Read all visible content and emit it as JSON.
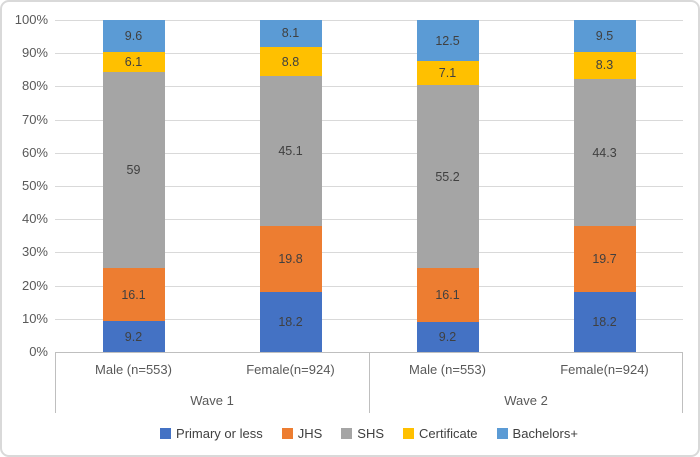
{
  "chart_data": {
    "type": "bar",
    "stacked": true,
    "percent_stacked": true,
    "title": "",
    "groups": [
      {
        "label": "Wave 1",
        "categories": [
          "Male (n=553)",
          "Female(n=924)"
        ]
      },
      {
        "label": "Wave 2",
        "categories": [
          "Male (n=553)",
          "Female(n=924)"
        ]
      }
    ],
    "series": [
      {
        "name": "Primary or less",
        "color": "#4472C4",
        "values": [
          9.2,
          18.2,
          9.2,
          18.2
        ]
      },
      {
        "name": "JHS",
        "color": "#ED7D31",
        "values": [
          16.1,
          19.8,
          16.1,
          19.7
        ]
      },
      {
        "name": "SHS",
        "color": "#A5A5A5",
        "values": [
          59,
          45.1,
          55.2,
          44.3
        ]
      },
      {
        "name": "Certificate",
        "color": "#FFC000",
        "values": [
          6.1,
          8.8,
          7.1,
          8.3
        ]
      },
      {
        "name": "Bachelors+",
        "color": "#5B9BD5",
        "values": [
          9.6,
          8.1,
          12.5,
          9.5
        ]
      }
    ],
    "yticks": [
      "0%",
      "10%",
      "20%",
      "30%",
      "40%",
      "50%",
      "60%",
      "70%",
      "80%",
      "90%",
      "100%"
    ],
    "ylim": [
      0,
      100
    ],
    "grid": true,
    "legend_position": "bottom",
    "style_colors": {
      "grid_color": "#D9D9D9",
      "axis_line_color": "#BFBFBF",
      "axis_text_color": "#595959",
      "data_label_color": "#404040",
      "border_color": "#D9D9D9",
      "background": "#FFFFFF"
    }
  }
}
